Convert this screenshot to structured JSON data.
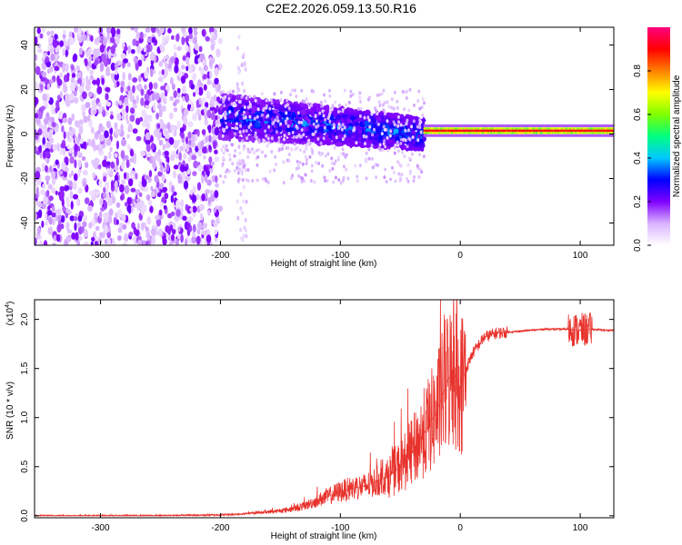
{
  "title": "C2E2.2026.059.13.50.R16",
  "chart_data": [
    {
      "type": "heatmap",
      "name": "spectrogram",
      "xlabel": "Height of straight line (km)",
      "ylabel": "Frequency (Hz)",
      "xlim": [
        -355,
        128
      ],
      "ylim": [
        -50,
        48
      ],
      "xticks": [
        "-300",
        "-200",
        "-100",
        "0",
        "100"
      ],
      "xtick_values": [
        -300,
        -200,
        -100,
        0,
        100
      ],
      "yticks": [
        "-40",
        "-20",
        "0",
        "20",
        "40"
      ],
      "ytick_values": [
        -40,
        -20,
        0,
        20,
        40
      ],
      "colorbar": {
        "label": "Normalized spectral amplitude",
        "range": [
          0.0,
          1.0
        ],
        "ticks": [
          "0.0",
          "0.2",
          "0.4",
          "0.6",
          "0.8"
        ],
        "tick_values": [
          0.0,
          0.2,
          0.4,
          0.6,
          0.8
        ],
        "colors": [
          "#ffffff",
          "#d9b3ff",
          "#8000ff",
          "#0000ff",
          "#00c8ff",
          "#00ff80",
          "#80ff00",
          "#ffff00",
          "#ff8000",
          "#ff0000",
          "#ff0080"
        ]
      },
      "regions": [
        {
          "x": [
            -355,
            -200
          ],
          "freq_band": [
            -50,
            48
          ],
          "amplitude": 0.1
        },
        {
          "x": [
            -200,
            -30
          ],
          "freq_band": [
            -10,
            16
          ],
          "amplitude": 0.3
        },
        {
          "x": [
            -30,
            128
          ],
          "carrier_freq": 1.5,
          "amplitude": 0.95
        }
      ]
    },
    {
      "type": "line",
      "name": "snr",
      "xlabel": "Height of straight line (km)",
      "ylabel": "SNR (10 * v/v)",
      "scale_label": "(x10",
      "scale_exp": "4",
      "scale_close": ")",
      "xlim": [
        -355,
        128
      ],
      "ylim": [
        -0.02,
        2.2
      ],
      "xticks": [
        "-300",
        "-200",
        "-100",
        "0",
        "100"
      ],
      "xtick_values": [
        -300,
        -200,
        -100,
        0,
        100
      ],
      "yticks": [
        "0.0",
        "0.5",
        "1.0",
        "1.5",
        "2.0"
      ],
      "ytick_values": [
        0.0,
        0.5,
        1.0,
        1.5,
        2.0
      ],
      "color": "#e8322c",
      "series": [
        {
          "name": "SNR",
          "x": [
            -355,
            -300,
            -250,
            -200,
            -180,
            -170,
            -160,
            -150,
            -140,
            -130,
            -120,
            -110,
            -100,
            -90,
            -80,
            -70,
            -60,
            -50,
            -40,
            -30,
            -20,
            -10,
            -5,
            0,
            5,
            10,
            20,
            30,
            40,
            50,
            60,
            70,
            80,
            90,
            100,
            110,
            120,
            128
          ],
          "values": [
            0.0,
            0.0,
            0.0,
            0.01,
            0.02,
            0.03,
            0.04,
            0.05,
            0.07,
            0.1,
            0.15,
            0.2,
            0.25,
            0.28,
            0.3,
            0.35,
            0.4,
            0.5,
            0.65,
            0.85,
            1.05,
            1.4,
            1.45,
            1.3,
            1.5,
            1.65,
            1.82,
            1.86,
            1.87,
            1.88,
            1.89,
            1.9,
            1.9,
            1.9,
            1.89,
            1.9,
            1.89,
            1.89
          ]
        }
      ]
    }
  ]
}
